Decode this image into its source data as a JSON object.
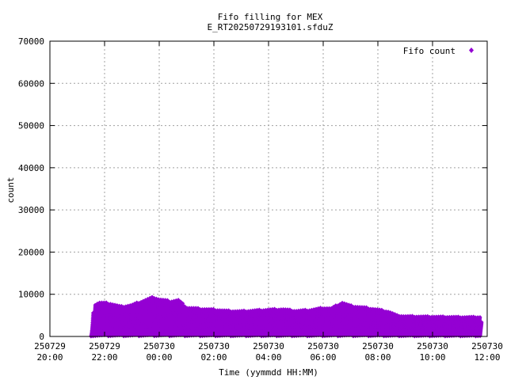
{
  "chart_data": {
    "type": "scatter",
    "title": "Fifo filling for MEX",
    "subtitle": "E_RT20250729193101.sfduZ",
    "xlabel": "Time (yymmdd HH:MM)",
    "ylabel": "count",
    "ylim": [
      0,
      70000
    ],
    "yticks": [
      0,
      10000,
      20000,
      30000,
      40000,
      50000,
      60000,
      70000
    ],
    "xlim_hours": [
      20,
      36
    ],
    "xticks": [
      {
        "hour": 20,
        "date": "250729",
        "time": "20:00"
      },
      {
        "hour": 22,
        "date": "250729",
        "time": "22:00"
      },
      {
        "hour": 24,
        "date": "250730",
        "time": "00:00"
      },
      {
        "hour": 26,
        "date": "250730",
        "time": "02:00"
      },
      {
        "hour": 28,
        "date": "250730",
        "time": "04:00"
      },
      {
        "hour": 30,
        "date": "250730",
        "time": "06:00"
      },
      {
        "hour": 32,
        "date": "250730",
        "time": "08:00"
      },
      {
        "hour": 34,
        "date": "250730",
        "time": "10:00"
      },
      {
        "hour": 36,
        "date": "250730",
        "time": "12:00"
      }
    ],
    "grid": true,
    "legend_position": "top-right",
    "series": [
      {
        "name": "Fifo count",
        "color": "#9400d3",
        "marker": "diamond",
        "x_range_hours": [
          21.5,
          35.8
        ],
        "peak_envelope": [
          [
            21.5,
            0
          ],
          [
            21.6,
            7500
          ],
          [
            21.8,
            8200
          ],
          [
            22.2,
            8000
          ],
          [
            22.6,
            7200
          ],
          [
            23.0,
            7600
          ],
          [
            23.4,
            8600
          ],
          [
            23.8,
            9500
          ],
          [
            24.0,
            9000
          ],
          [
            24.4,
            8500
          ],
          [
            24.7,
            8800
          ],
          [
            25.0,
            7000
          ],
          [
            25.5,
            6700
          ],
          [
            26.0,
            6500
          ],
          [
            26.5,
            6200
          ],
          [
            27.0,
            6100
          ],
          [
            27.5,
            6300
          ],
          [
            28.0,
            6500
          ],
          [
            28.5,
            6600
          ],
          [
            29.0,
            6200
          ],
          [
            29.5,
            6400
          ],
          [
            30.0,
            6900
          ],
          [
            30.3,
            6800
          ],
          [
            30.7,
            8200
          ],
          [
            31.0,
            7400
          ],
          [
            31.5,
            7000
          ],
          [
            32.0,
            6500
          ],
          [
            32.4,
            6000
          ],
          [
            32.7,
            5100
          ],
          [
            33.0,
            4900
          ],
          [
            34.0,
            4800
          ],
          [
            35.0,
            4700
          ],
          [
            35.8,
            4700
          ]
        ]
      }
    ]
  }
}
